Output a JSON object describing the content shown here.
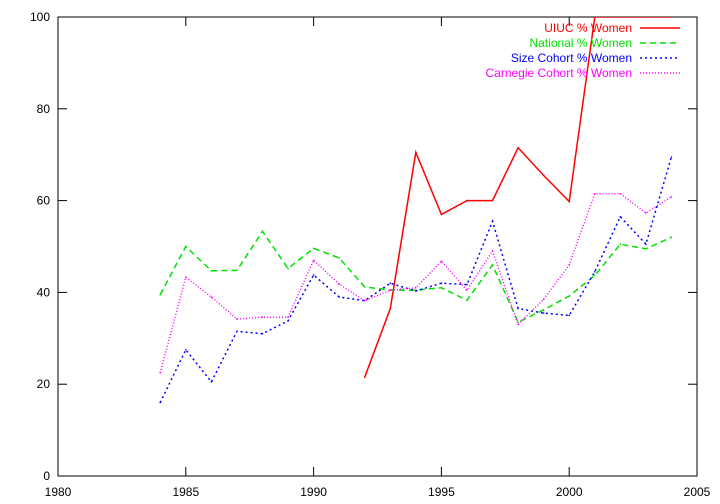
{
  "chart_data": {
    "type": "line",
    "xlim": [
      1980,
      2005
    ],
    "ylim": [
      0,
      100
    ],
    "x_ticks": [
      1980,
      1985,
      1990,
      1995,
      2000,
      2005
    ],
    "y_ticks": [
      0,
      20,
      40,
      60,
      80,
      100
    ],
    "x_tick_labels": [
      "1980",
      "1985",
      "1990",
      "1995",
      "2000",
      "2005"
    ],
    "y_tick_labels": [
      "0",
      "20",
      "40",
      "60",
      "80",
      "100"
    ],
    "grid": false,
    "legend_position": "top-right",
    "series": [
      {
        "name": "UIUC % Women",
        "color": "#ff0000",
        "dash": "solid",
        "x": [
          1992,
          1993,
          1994,
          1995,
          1996,
          1997,
          1998,
          1999,
          2000,
          2001,
          2002,
          2003,
          2004
        ],
        "values": [
          21.5,
          36.5,
          70.5,
          57,
          60,
          60,
          71.5,
          65.5,
          59.8,
          100,
          100,
          100,
          100
        ]
      },
      {
        "name": "National % Women",
        "color": "#00e000",
        "dash": "dashed",
        "x": [
          1984,
          1985,
          1986,
          1987,
          1988,
          1989,
          1990,
          1991,
          1992,
          1993,
          1994,
          1995,
          1996,
          1997,
          1998,
          1999,
          2000,
          2001,
          2002,
          2003,
          2004
        ],
        "values": [
          39.5,
          50,
          44.7,
          44.8,
          53.3,
          45.2,
          49.6,
          47.5,
          41.2,
          40.5,
          40.5,
          41,
          38.3,
          46,
          33.5,
          36.2,
          39.2,
          43.7,
          50.5,
          49.5,
          52
        ]
      },
      {
        "name": "Size Cohort % Women",
        "color": "#0000ff",
        "dash": "dotted",
        "x": [
          1984,
          1985,
          1986,
          1987,
          1988,
          1989,
          1990,
          1991,
          1992,
          1993,
          1994,
          1995,
          1996,
          1997,
          1998,
          1999,
          2000,
          2001,
          2002,
          2003,
          2004
        ],
        "values": [
          16,
          27.5,
          20.5,
          31.5,
          31,
          33.8,
          43.8,
          39,
          38.2,
          42,
          40.3,
          42,
          41.7,
          55.5,
          36.5,
          35.5,
          35,
          44.5,
          56.5,
          50.5,
          69.5
        ]
      },
      {
        "name": "Carnegie Cohort % Women",
        "color": "#ff00ff",
        "dash": "fine-dotted",
        "x": [
          1984,
          1985,
          1986,
          1987,
          1988,
          1989,
          1990,
          1991,
          1992,
          1993,
          1994,
          1995,
          1996,
          1997,
          1998,
          1999,
          2000,
          2001,
          2002,
          2003,
          2004
        ],
        "values": [
          22.5,
          43.3,
          39,
          34.2,
          34.6,
          34.6,
          47,
          41.8,
          38.2,
          40.5,
          41,
          46.8,
          40.5,
          49,
          33,
          38.5,
          46,
          61.5,
          61.5,
          57.3,
          60.8
        ]
      }
    ]
  }
}
